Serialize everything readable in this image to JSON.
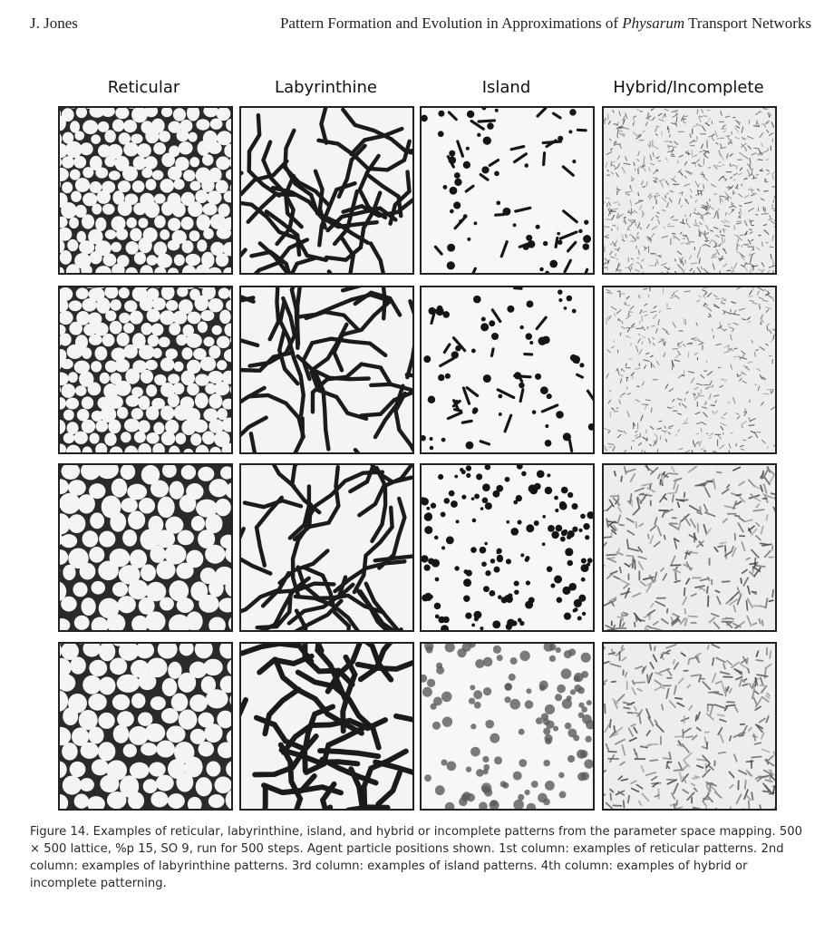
{
  "running_head": {
    "author": "J. Jones",
    "title_pre": "Pattern Formation and Evolution in Approximations of ",
    "title_italic": "Physarum",
    "title_post": " Transport Networks"
  },
  "columns": [
    "Reticular",
    "Labyrinthine",
    "Island",
    "Hybrid/Incomplete"
  ],
  "caption": {
    "label": "Figure 14.",
    "text": " Examples of reticular, labyrinthine, island, and hybrid or incomplete patterns from the parameter space mapping. 500 × 500 lattice, %p 15, SO 9, run for 500 steps. Agent particle positions shown. 1st column: examples of reticular patterns. 2nd column: examples of labyrinthine patterns. 3rd column: examples of island patterns. 4th column: examples of hybrid or incomplete patterning."
  },
  "panels": [
    {
      "pattern": "reticular-small"
    },
    {
      "pattern": "labyrinth"
    },
    {
      "pattern": "island-mixed"
    },
    {
      "pattern": "hybrid-fine"
    },
    {
      "pattern": "reticular-small"
    },
    {
      "pattern": "labyrinth"
    },
    {
      "pattern": "island-mixed"
    },
    {
      "pattern": "hybrid-medium"
    },
    {
      "pattern": "reticular-large"
    },
    {
      "pattern": "labyrinth"
    },
    {
      "pattern": "island-dots"
    },
    {
      "pattern": "hybrid-streaks"
    },
    {
      "pattern": "reticular-large"
    },
    {
      "pattern": "labyrinth-thick"
    },
    {
      "pattern": "island-fuzzy"
    },
    {
      "pattern": "hybrid-streaks"
    }
  ]
}
